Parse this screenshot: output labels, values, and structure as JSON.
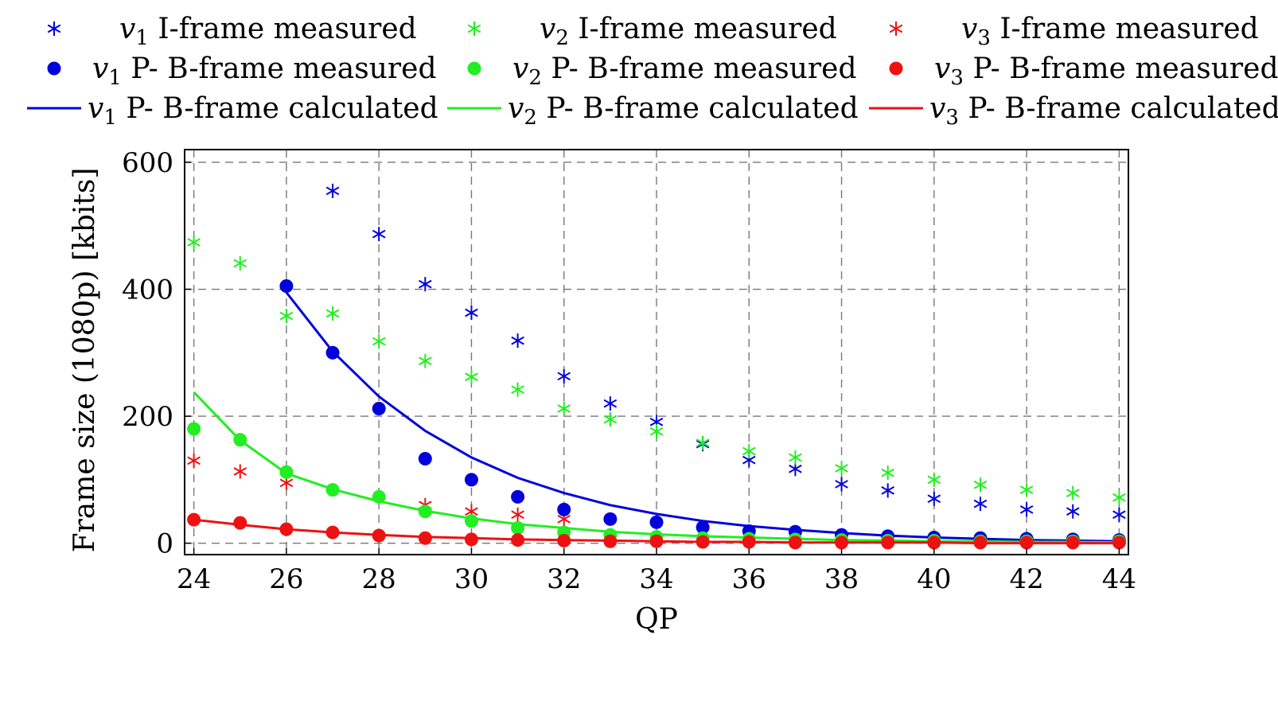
{
  "chart_data": {
    "type": "scatter",
    "xlabel": "QP",
    "ylabel": "Frame size (1080p) [kbits]",
    "xlim": [
      23.8,
      44.2
    ],
    "ylim": [
      -18,
      620
    ],
    "xticks": [
      24,
      26,
      28,
      30,
      32,
      34,
      36,
      38,
      40,
      42,
      44
    ],
    "yticks": [
      0,
      200,
      400,
      600
    ],
    "grid": true,
    "legend_position": "top",
    "series": [
      {
        "name": "v1 I-frame measured",
        "label_var": "v",
        "label_sub": "1",
        "label_rest": " I-frame measured",
        "marker": "asterisk",
        "color": "#0000dd",
        "x": [
          27,
          28,
          29,
          30,
          31,
          32,
          33,
          34,
          35,
          36,
          37,
          38,
          39,
          40,
          41,
          42,
          43,
          44
        ],
        "y": [
          555,
          487,
          408,
          363,
          319,
          263,
          220,
          191,
          156,
          131,
          117,
          93,
          83,
          70,
          62,
          53,
          50,
          45
        ]
      },
      {
        "name": "v2 I-frame measured",
        "label_var": "v",
        "label_sub": "2",
        "label_rest": " I-frame measured",
        "marker": "asterisk",
        "color": "#22ee22",
        "x": [
          24,
          25,
          26,
          27,
          28,
          29,
          30,
          31,
          32,
          33,
          34,
          35,
          36,
          37,
          38,
          39,
          40,
          41,
          42,
          43,
          44
        ],
        "y": [
          474,
          441,
          358,
          362,
          318,
          287,
          262,
          242,
          212,
          195,
          176,
          158,
          145,
          135,
          118,
          111,
          100,
          92,
          84,
          79,
          72
        ]
      },
      {
        "name": "v3 I-frame measured",
        "label_var": "v",
        "label_sub": "3",
        "label_rest": " I-frame measured",
        "marker": "asterisk",
        "color": "#ee1111",
        "x": [
          24,
          25,
          26,
          29,
          30,
          31,
          32
        ],
        "y": [
          130,
          113,
          95,
          60,
          50,
          45,
          38
        ]
      },
      {
        "name": "v1 P- B-frame measured",
        "label_var": "v",
        "label_sub": "1",
        "label_rest": " P- B-frame measured",
        "marker": "dot",
        "color": "#0000dd",
        "x": [
          26,
          27,
          28,
          29,
          30,
          31,
          32,
          33,
          34,
          35,
          36,
          37,
          38,
          39,
          40,
          41,
          42,
          43,
          44
        ],
        "y": [
          405,
          300,
          212,
          133,
          100,
          73,
          53,
          38,
          33,
          25,
          19,
          18,
          13,
          11,
          9,
          8,
          7,
          6,
          5
        ]
      },
      {
        "name": "v2 P- B-frame measured",
        "label_var": "v",
        "label_sub": "2",
        "label_rest": " P- B-frame measured",
        "marker": "dot",
        "color": "#22ee22",
        "x": [
          24,
          25,
          26,
          27,
          28,
          29,
          30,
          31,
          32,
          33,
          34,
          35,
          36,
          37,
          38,
          39,
          40,
          41,
          42,
          43,
          44
        ],
        "y": [
          180,
          163,
          112,
          84,
          73,
          50,
          35,
          24,
          17,
          13,
          10,
          8,
          7,
          6,
          5,
          4,
          4,
          3,
          3,
          3,
          3
        ]
      },
      {
        "name": "v3 P- B-frame measured",
        "label_var": "v",
        "label_sub": "3",
        "label_rest": " P- B-frame measured",
        "marker": "dot",
        "color": "#ee1111",
        "x": [
          24,
          25,
          26,
          27,
          28,
          29,
          30,
          31,
          32,
          33,
          34,
          35,
          36,
          37,
          38,
          39,
          40,
          41,
          42,
          43,
          44
        ],
        "y": [
          37,
          32,
          22,
          17,
          12,
          8,
          6,
          5,
          4,
          3,
          3,
          2,
          2,
          1,
          1,
          1,
          1,
          1,
          1,
          1,
          1
        ]
      },
      {
        "name": "v1 P- B-frame calculated",
        "label_var": "v",
        "label_sub": "1",
        "label_rest": " P- B-frame calculated",
        "marker": "line",
        "color": "#0000dd",
        "x": [
          26,
          27,
          28,
          29,
          30,
          31,
          32,
          33,
          34,
          35,
          36,
          37,
          38,
          39,
          40,
          41,
          42,
          43,
          44
        ],
        "y": [
          395,
          302,
          231,
          177,
          135,
          103,
          79,
          60,
          46,
          35,
          27,
          21,
          16,
          12,
          9,
          7,
          5,
          4,
          3
        ]
      },
      {
        "name": "v2 P- B-frame calculated",
        "label_var": "v",
        "label_sub": "2",
        "label_rest": " P- B-frame calculated",
        "marker": "line",
        "color": "#22ee22",
        "x": [
          24,
          25,
          26,
          27,
          28,
          29,
          30,
          31,
          32,
          33,
          34,
          35,
          36,
          37,
          38,
          39,
          40,
          41,
          42,
          43,
          44
        ],
        "y": [
          238,
          162,
          110,
          85,
          66,
          51,
          39,
          30,
          24,
          18,
          14,
          11,
          9,
          7,
          5,
          4,
          3,
          3,
          2,
          2,
          1
        ]
      },
      {
        "name": "v3 P- B-frame calculated",
        "label_var": "v",
        "label_sub": "3",
        "label_rest": " P- B-frame calculated",
        "marker": "line",
        "color": "#ee1111",
        "x": [
          24,
          25,
          26,
          27,
          28,
          29,
          30,
          31,
          32,
          33,
          34,
          35,
          36,
          37,
          38,
          39,
          40,
          41,
          42,
          43,
          44
        ],
        "y": [
          37,
          29,
          22,
          17,
          13,
          10,
          8,
          6,
          5,
          4,
          3,
          2,
          2,
          1,
          1,
          1,
          1,
          0,
          0,
          0,
          0
        ]
      }
    ]
  }
}
